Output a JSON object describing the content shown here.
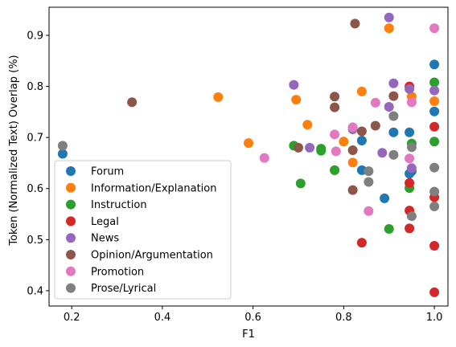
{
  "chart_data": {
    "type": "scatter",
    "title": "",
    "xlabel": "F1",
    "ylabel": "Token (Normalized Text) Overlap (%)",
    "xlim": [
      0.15,
      1.03
    ],
    "ylim": [
      0.37,
      0.955
    ],
    "xticks": [
      "0.2",
      "0.4",
      "0.6",
      "0.8",
      "1.0"
    ],
    "yticks": [
      "0.4",
      "0.5",
      "0.6",
      "0.7",
      "0.8",
      "0.9"
    ],
    "grid": false,
    "legend_position": "lower-left",
    "series": [
      {
        "name": "Forum",
        "color": "#1f77b4",
        "points": [
          [
            0.18,
            0.668
          ],
          [
            0.84,
            0.694
          ],
          [
            0.84,
            0.636
          ],
          [
            0.89,
            0.581
          ],
          [
            0.91,
            0.71
          ],
          [
            0.945,
            0.71
          ],
          [
            0.945,
            0.629
          ],
          [
            0.95,
            0.634
          ],
          [
            1.0,
            0.843
          ],
          [
            1.0,
            0.751
          ]
        ]
      },
      {
        "name": "Information/Explanation",
        "color": "#ff7f0e",
        "points": [
          [
            0.523,
            0.779
          ],
          [
            0.59,
            0.689
          ],
          [
            0.695,
            0.774
          ],
          [
            0.72,
            0.725
          ],
          [
            0.78,
            0.636
          ],
          [
            0.8,
            0.692
          ],
          [
            0.82,
            0.651
          ],
          [
            0.84,
            0.79
          ],
          [
            0.9,
            0.914
          ],
          [
            0.95,
            0.78
          ],
          [
            1.0,
            0.771
          ]
        ]
      },
      {
        "name": "Instruction",
        "color": "#2ca02c",
        "points": [
          [
            0.69,
            0.684
          ],
          [
            0.705,
            0.61
          ],
          [
            0.75,
            0.678
          ],
          [
            0.75,
            0.674
          ],
          [
            0.78,
            0.636
          ],
          [
            0.9,
            0.521
          ],
          [
            0.945,
            0.601
          ],
          [
            0.95,
            0.688
          ],
          [
            1.0,
            0.808
          ],
          [
            1.0,
            0.692
          ]
        ]
      },
      {
        "name": "Legal",
        "color": "#d62728",
        "points": [
          [
            0.84,
            0.494
          ],
          [
            0.945,
            0.8
          ],
          [
            0.945,
            0.611
          ],
          [
            0.945,
            0.557
          ],
          [
            0.945,
            0.522
          ],
          [
            1.0,
            0.721
          ],
          [
            1.0,
            0.583
          ],
          [
            1.0,
            0.488
          ],
          [
            1.0,
            0.397
          ]
        ]
      },
      {
        "name": "News",
        "color": "#9467bd",
        "points": [
          [
            0.69,
            0.803
          ],
          [
            0.725,
            0.68
          ],
          [
            0.82,
            0.716
          ],
          [
            0.885,
            0.67
          ],
          [
            0.9,
            0.935
          ],
          [
            0.9,
            0.76
          ],
          [
            0.91,
            0.806
          ],
          [
            0.945,
            0.795
          ],
          [
            0.95,
            0.64
          ],
          [
            1.0,
            0.792
          ]
        ]
      },
      {
        "name": "Opinion/Argumentation",
        "color": "#8c564b",
        "points": [
          [
            0.333,
            0.769
          ],
          [
            0.7,
            0.68
          ],
          [
            0.78,
            0.78
          ],
          [
            0.78,
            0.759
          ],
          [
            0.82,
            0.675
          ],
          [
            0.82,
            0.597
          ],
          [
            0.825,
            0.923
          ],
          [
            0.84,
            0.712
          ],
          [
            0.87,
            0.723
          ],
          [
            0.91,
            0.781
          ]
        ]
      },
      {
        "name": "Promotion",
        "color": "#e377c2",
        "points": [
          [
            0.625,
            0.66
          ],
          [
            0.78,
            0.706
          ],
          [
            0.783,
            0.673
          ],
          [
            0.82,
            0.72
          ],
          [
            0.855,
            0.556
          ],
          [
            0.87,
            0.768
          ],
          [
            0.945,
            0.659
          ],
          [
            0.95,
            0.769
          ],
          [
            1.0,
            0.914
          ]
        ]
      },
      {
        "name": "Prose/Lyrical",
        "color": "#7f7f7f",
        "points": [
          [
            0.18,
            0.684
          ],
          [
            0.855,
            0.634
          ],
          [
            0.855,
            0.613
          ],
          [
            0.91,
            0.742
          ],
          [
            0.91,
            0.666
          ],
          [
            0.95,
            0.681
          ],
          [
            0.95,
            0.546
          ],
          [
            1.0,
            0.641
          ],
          [
            1.0,
            0.594
          ],
          [
            1.0,
            0.565
          ]
        ]
      }
    ]
  }
}
